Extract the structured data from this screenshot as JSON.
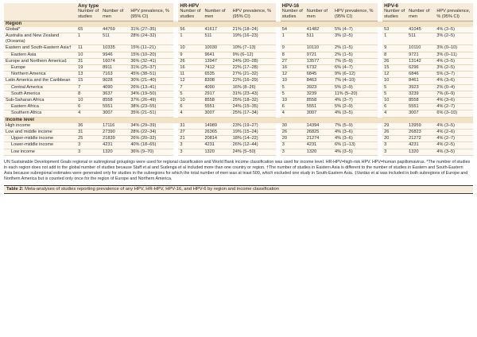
{
  "header": {
    "groups": [
      "Any type",
      "HR-HPV",
      "HPV-16",
      "HPV-6"
    ],
    "col_studies": "Number of studies",
    "col_men": "Number of men",
    "col_prev": "HPV prevalence, % (95% CI)"
  },
  "sections": [
    {
      "title": "Region",
      "rows": [
        {
          "label": "Global*",
          "sub": false,
          "cells": [
            "65",
            "44769",
            "31% (27–35)",
            "56",
            "41617",
            "21% (18–24)",
            "54",
            "41482",
            "5% (4–7)",
            "53",
            "41045",
            "4% (3–5)"
          ]
        },
        {
          "label": "Australia and New Zealand (Oceania)",
          "sub": false,
          "cells": [
            "1",
            "511",
            "28% (24–32)",
            "1",
            "511",
            "19% (16–23)",
            "1",
            "511",
            "3% (2–5)",
            "1",
            "511",
            "3% (2–5)"
          ]
        },
        {
          "label": "Eastern and South-Eastern Asia†",
          "sub": false,
          "cells": [
            "11",
            "10335",
            "15% (11–21)",
            "10",
            "10030",
            "10% (7–13)",
            "9",
            "10110",
            "2% (1–5)",
            "9",
            "10110",
            "3% (0–10)"
          ]
        },
        {
          "label": "Eastern Asia",
          "sub": true,
          "cells": [
            "10",
            "9946",
            "15% (10–20)",
            "9",
            "9641",
            "9% (6–12)",
            "8",
            "9721",
            "2% (1–5)",
            "8",
            "9721",
            "3% (0–11)"
          ]
        },
        {
          "label": "Europe and Northern America‡",
          "sub": false,
          "cells": [
            "31",
            "16074",
            "36% (32–41)",
            "26",
            "13947",
            "24% (20–28)",
            "27",
            "13577",
            "7% (5–9)",
            "26",
            "13142",
            "4% (3–5)"
          ]
        },
        {
          "label": "Europe",
          "sub": true,
          "cells": [
            "19",
            "8911",
            "31% (25–37)",
            "16",
            "7412",
            "22% (17–28)",
            "16",
            "6732",
            "6% (4–7)",
            "15",
            "6296",
            "3% (2–5)"
          ]
        },
        {
          "label": "Northern America",
          "sub": true,
          "cells": [
            "13",
            "7163",
            "45% (38–51)",
            "11",
            "6535",
            "27% (21–32)",
            "12",
            "6845",
            "9% (6–12)",
            "12",
            "6846",
            "5% (3–7)"
          ]
        },
        {
          "label": "Latin America and the Caribbean",
          "sub": false,
          "cells": [
            "15",
            "9028",
            "30% (21–40)",
            "12",
            "8308",
            "22% (16–29)",
            "10",
            "8463",
            "7% (4–10)",
            "10",
            "8461",
            "4% (3–6)"
          ]
        },
        {
          "label": "Central America",
          "sub": true,
          "cells": [
            "7",
            "4090",
            "26% (13–41)",
            "7",
            "4090",
            "16% (8–26)",
            "5",
            "3923",
            "5% (2–9)",
            "5",
            "3923",
            "2% (0–4)"
          ]
        },
        {
          "label": "South America",
          "sub": true,
          "cells": [
            "8",
            "3637",
            "34% (19–50)",
            "5",
            "2917",
            "31% (23–43)",
            "5",
            "3239",
            "11% (5–20)",
            "5",
            "3239",
            "7% (6–9)"
          ]
        },
        {
          "label": "Sub-Saharan Africa",
          "sub": false,
          "cells": [
            "10",
            "8558",
            "37% (26–49)",
            "10",
            "8558",
            "25% (18–32)",
            "10",
            "8558",
            "4% (3–7)",
            "10",
            "8558",
            "4% (3–6)"
          ]
        },
        {
          "label": "Eastern Africa",
          "sub": true,
          "cells": [
            "6",
            "5551",
            "38% (23–55)",
            "6",
            "5551",
            "24% (15–35)",
            "6",
            "5551",
            "5% (2–9)",
            "6",
            "5551",
            "4% (2–7)"
          ]
        },
        {
          "label": "Southern Africa",
          "sub": true,
          "cells": [
            "4",
            "3007",
            "35% (21–51)",
            "4",
            "3007",
            "25% (17–34)",
            "4",
            "3007",
            "4% (3–5)",
            "4",
            "3007",
            "6% (3–10)"
          ]
        }
      ]
    },
    {
      "title": "Income level",
      "rows": [
        {
          "label": "High income",
          "sub": false,
          "cells": [
            "36",
            "17116",
            "34% (29–39)",
            "31",
            "14989",
            "23% (19–27)",
            "30",
            "14394",
            "7% (5–9)",
            "29",
            "13959",
            "4% (3–5)"
          ]
        },
        {
          "label": "Low and middle income",
          "sub": false,
          "cells": [
            "31",
            "27390",
            "28% (22–34)",
            "27",
            "26365",
            "19% (15–24)",
            "26",
            "26825",
            "4% (3–6)",
            "26",
            "26823",
            "4% (2–6)"
          ]
        },
        {
          "label": "Upper-middle income",
          "sub": true,
          "cells": [
            "25",
            "21839",
            "26% (20–32)",
            "21",
            "20814",
            "18% (14–22)",
            "20",
            "21274",
            "4% (3–6)",
            "20",
            "21272",
            "4% (2–7)"
          ]
        },
        {
          "label": "Lower-middle income",
          "sub": true,
          "cells": [
            "3",
            "4231",
            "40% (18–65)",
            "3",
            "4231",
            "26% (12–44)",
            "3",
            "4231",
            "6% (1–13)",
            "3",
            "4231",
            "4% (2–5)"
          ]
        },
        {
          "label": "Low income",
          "sub": true,
          "cells": [
            "3",
            "1320",
            "36% (9–70)",
            "3",
            "1320",
            "24% (5–50)",
            "3",
            "1320",
            "4% (3–5)",
            "3",
            "1320",
            "4% (3–5)"
          ]
        }
      ]
    }
  ],
  "footnote": "UN Sustainable Development Goals regional or subregional groupings were used for regional classification and World Bank income classification was used for income level. HR-HPV=high-risk HPV. HPV=human papillomavirus. *The number of studies in each region does not add to the global number of studies because Staff et al and Sudenga et al included more than one country or region. †The number of studies in Eastern Asia is different to the number of studies in Eastern and South-Eastern Asia because subregional estimates were generated only for studies in the subregions for which the total number of men was at least 500, which excluded one study in South-Eastern Asia. ‡Vardas et al was included in both subregions of Europe and Northern America but is counted only once for the region of Europe and Northern America.",
  "caption": {
    "label": "Table 2:",
    "text": "Meta-analyses of studies reporting prevalence of any HPV, HR-HPV, HPV-16, and HPV-6 by region and income classification"
  }
}
